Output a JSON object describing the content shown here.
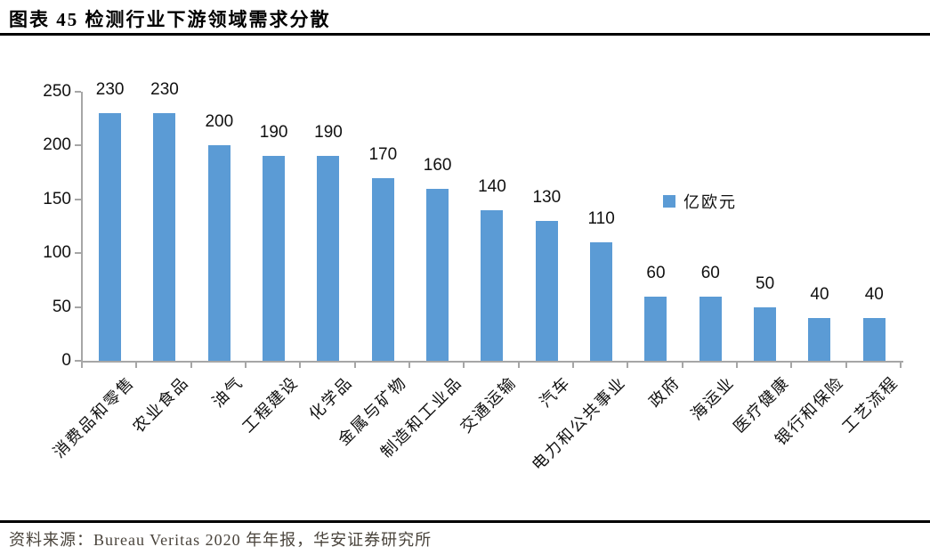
{
  "header": {
    "title": "图表 45  检测行业下游领域需求分散"
  },
  "footer": {
    "source": "资料来源：Bureau Veritas 2020 年年报，华安证券研究所"
  },
  "colors": {
    "bar": "#5B9BD5",
    "axis": "#A6A6A6",
    "rule": "#000000",
    "source_text": "#4A443C"
  },
  "chart_data": {
    "type": "bar",
    "title": "图表 45 检测行业下游领域需求分散",
    "categories": [
      "消费品和零售",
      "农业食品",
      "油气",
      "工程建设",
      "化学品",
      "金属与矿物",
      "制造和工业品",
      "交通运输",
      "汽车",
      "电力和公共事业",
      "政府",
      "海运业",
      "医疗健康",
      "银行和保险",
      "工艺流程"
    ],
    "values": [
      230,
      230,
      200,
      190,
      190,
      170,
      160,
      140,
      130,
      110,
      60,
      60,
      50,
      40,
      40
    ],
    "unit": "亿欧元",
    "legend": {
      "label": "亿欧元",
      "position": "center-right"
    },
    "xlabel": "",
    "ylabel": "",
    "ylim": [
      0,
      250
    ],
    "yticks": [
      0,
      50,
      100,
      150,
      200,
      250
    ],
    "grid": false,
    "data_labels": "above-bars",
    "bar_color": "#5B9BD5",
    "axis_color": "#A6A6A6"
  }
}
